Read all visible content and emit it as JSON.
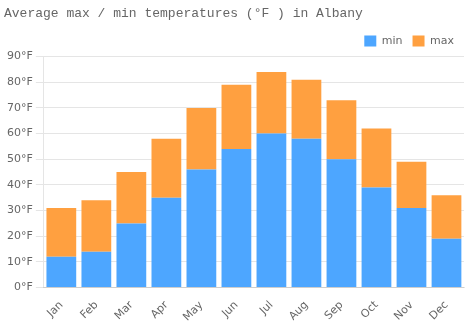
{
  "chart_data": {
    "type": "bar",
    "title": "Average max / min temperatures (°F ) in Albany",
    "categories": [
      "Jan",
      "Feb",
      "Mar",
      "Apr",
      "May",
      "Jun",
      "Jul",
      "Aug",
      "Sep",
      "Oct",
      "Nov",
      "Dec"
    ],
    "series": [
      {
        "name": "min",
        "color": "#4da6ff",
        "values": [
          12,
          14,
          25,
          35,
          46,
          54,
          60,
          58,
          50,
          39,
          31,
          19
        ]
      },
      {
        "name": "max",
        "color": "#ffa040",
        "values": [
          19,
          20,
          20,
          23,
          24,
          25,
          24,
          23,
          23,
          23,
          18,
          17
        ]
      }
    ],
    "stacked": true,
    "ylim": [
      0,
      90
    ],
    "yticks": [
      {
        "value": 0,
        "label": "0°F"
      },
      {
        "value": 10,
        "label": "10°F"
      },
      {
        "value": 20,
        "label": "20°F"
      },
      {
        "value": 30,
        "label": "30°F"
      },
      {
        "value": 40,
        "label": "40°F"
      },
      {
        "value": 50,
        "label": "50°F"
      },
      {
        "value": 60,
        "label": "60°F"
      },
      {
        "value": 70,
        "label": "70°F"
      },
      {
        "value": 80,
        "label": "80°F"
      },
      {
        "value": 90,
        "label": "90°F"
      }
    ],
    "grid": true,
    "legend": "upper right"
  }
}
